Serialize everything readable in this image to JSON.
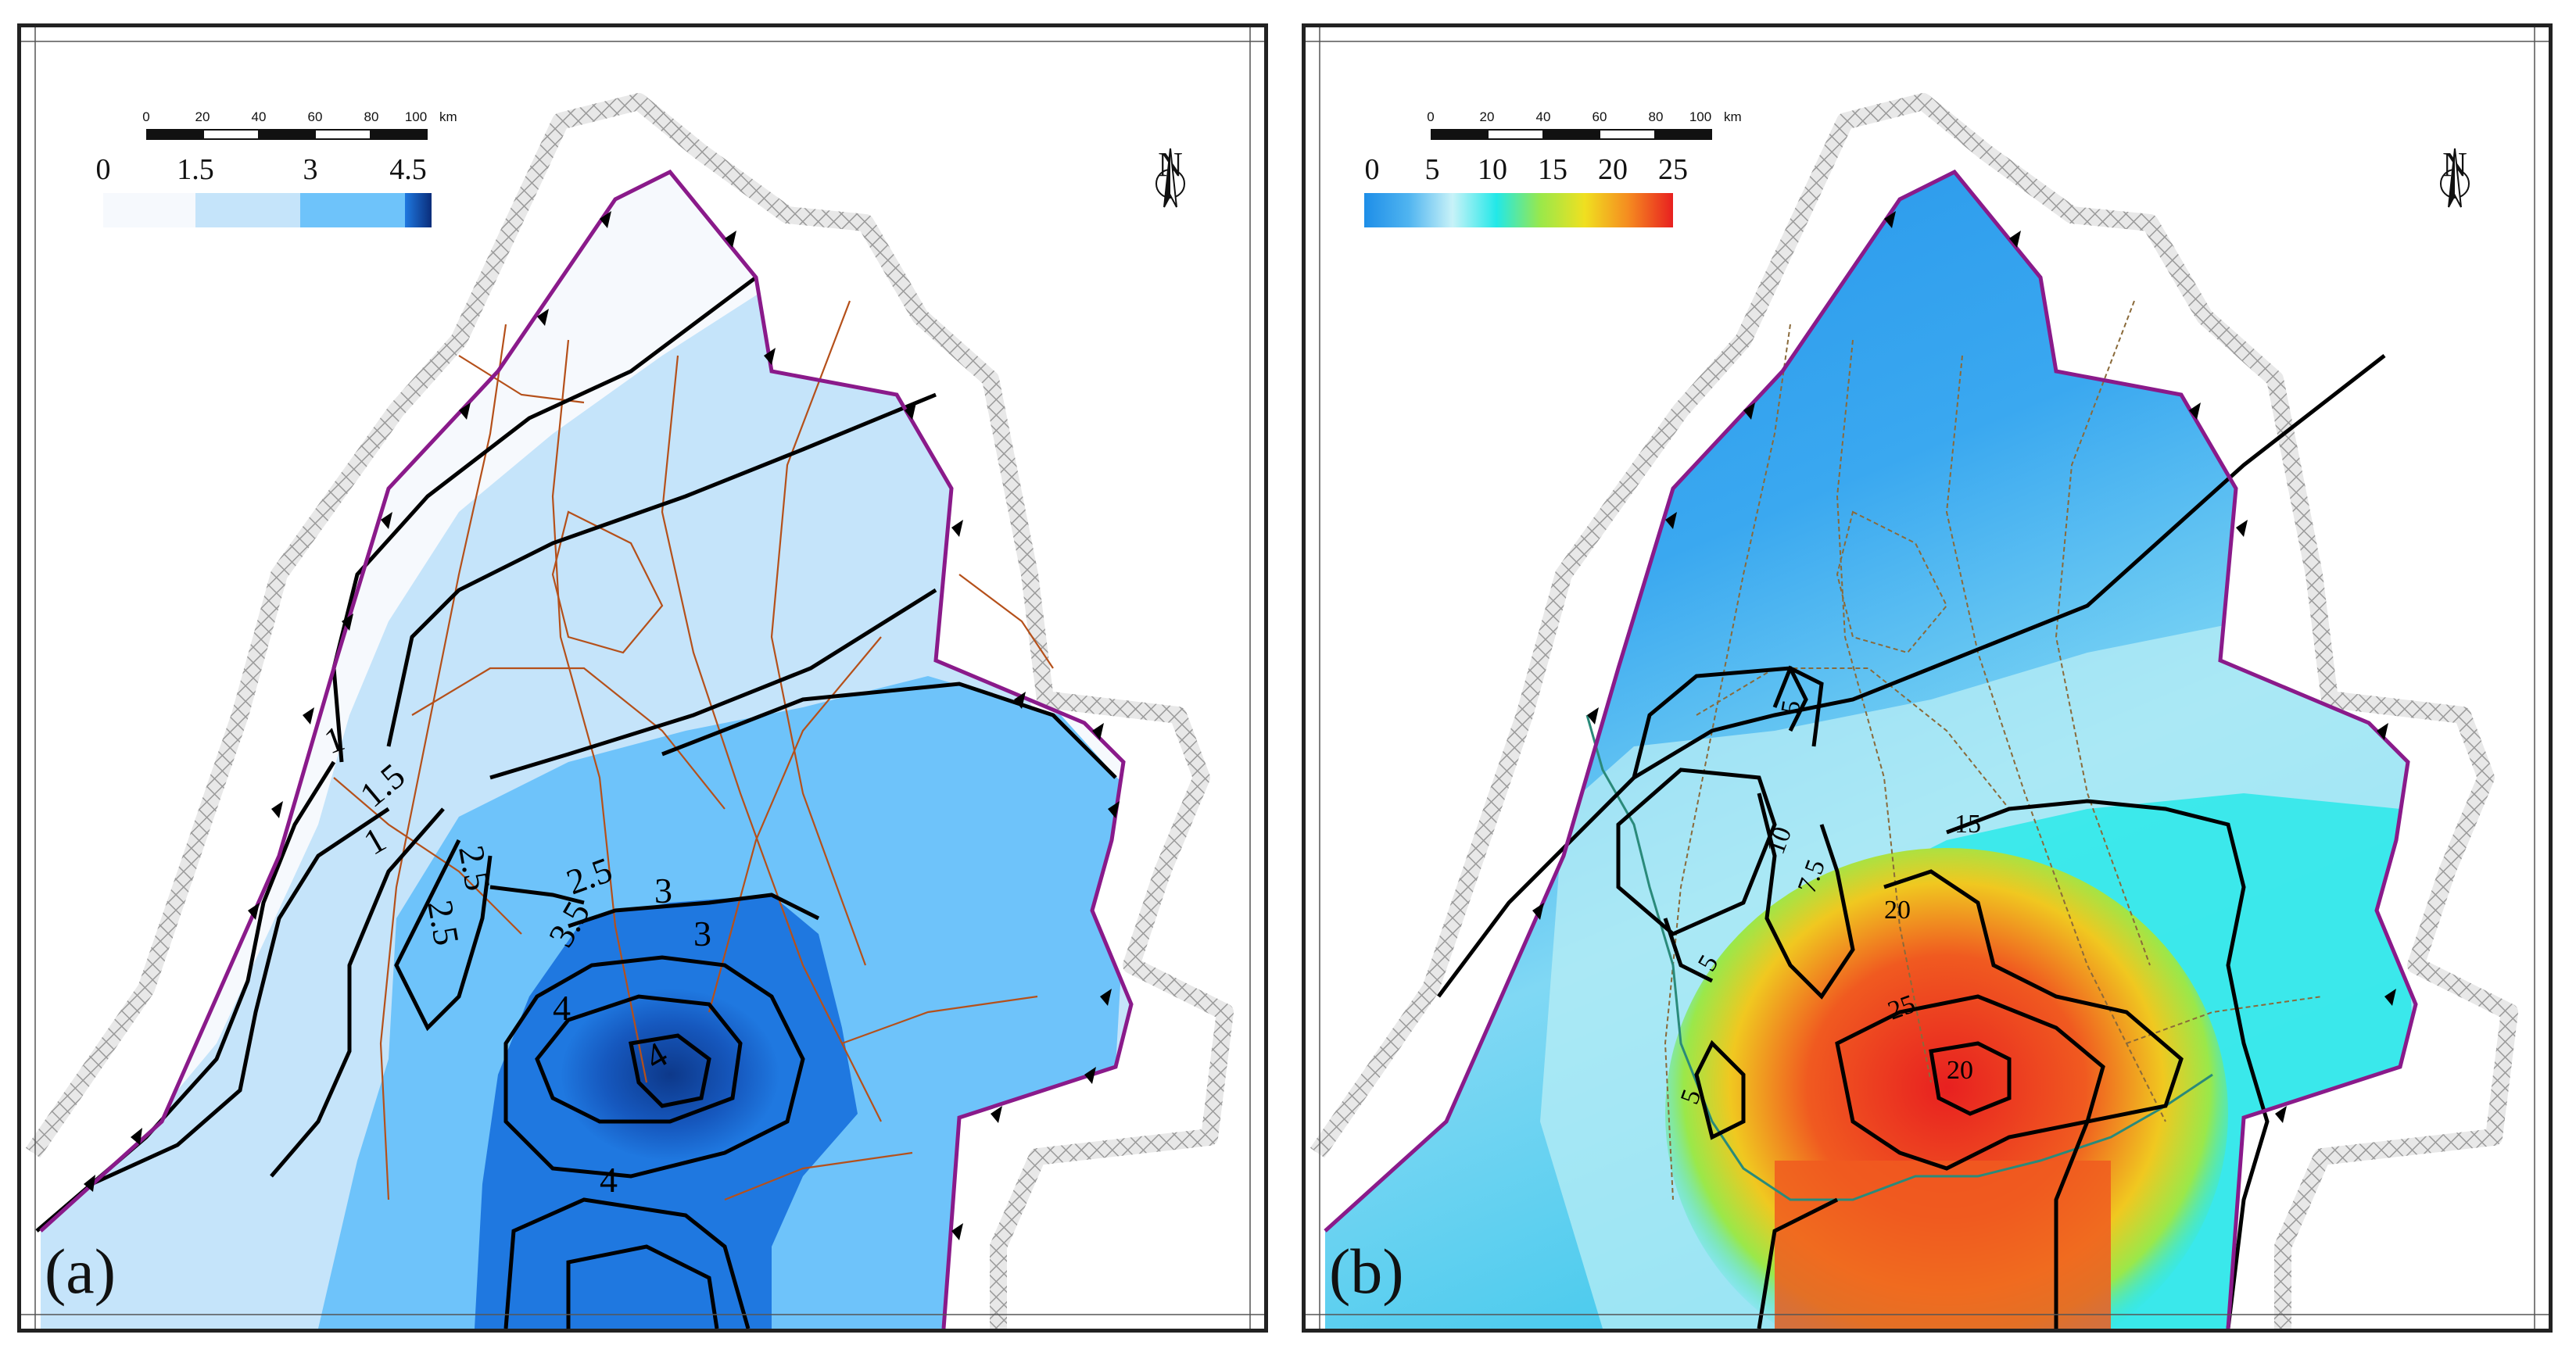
{
  "panels": {
    "a": {
      "label": "(a)",
      "legend_ticks": [
        "0",
        "1.5",
        "3",
        "4.5"
      ],
      "legend_classes": [
        {
          "color": "#f6f9fd"
        },
        {
          "color": "#c5e4fa"
        },
        {
          "color": "#6ec3fa"
        },
        {
          "color": "#1f78e0"
        },
        {
          "color": "#0a2d7a"
        }
      ],
      "contour_labels": [
        "1",
        "1.5",
        "1",
        "2.5",
        "2.5",
        "2.5",
        "3",
        "3.5",
        "4",
        "4",
        "4",
        "3"
      ]
    },
    "b": {
      "label": "(b)",
      "legend_ticks": [
        "0",
        "5",
        "10",
        "15",
        "20",
        "25"
      ],
      "legend_gradient": [
        "#1e8ee8",
        "#4fb4f0",
        "#c8f2f8",
        "#22e8e8",
        "#9ae84a",
        "#f0e020",
        "#f58a20",
        "#e82020"
      ],
      "contour_labels": [
        "5",
        "10",
        "7.5",
        "15",
        "20",
        "25",
        "20",
        "5",
        "5"
      ]
    }
  },
  "scale_bar": {
    "ticks": [
      "0",
      "20",
      "40",
      "60",
      "80",
      "100"
    ],
    "unit": "km"
  },
  "north_arrow": {
    "letter": "N",
    "icon": "north-arrow-icon"
  },
  "colors": {
    "boundary": "#8a1a8a",
    "fault": "#b5501a",
    "contour": "#000000",
    "outer_belt": "#c8c8c8"
  }
}
